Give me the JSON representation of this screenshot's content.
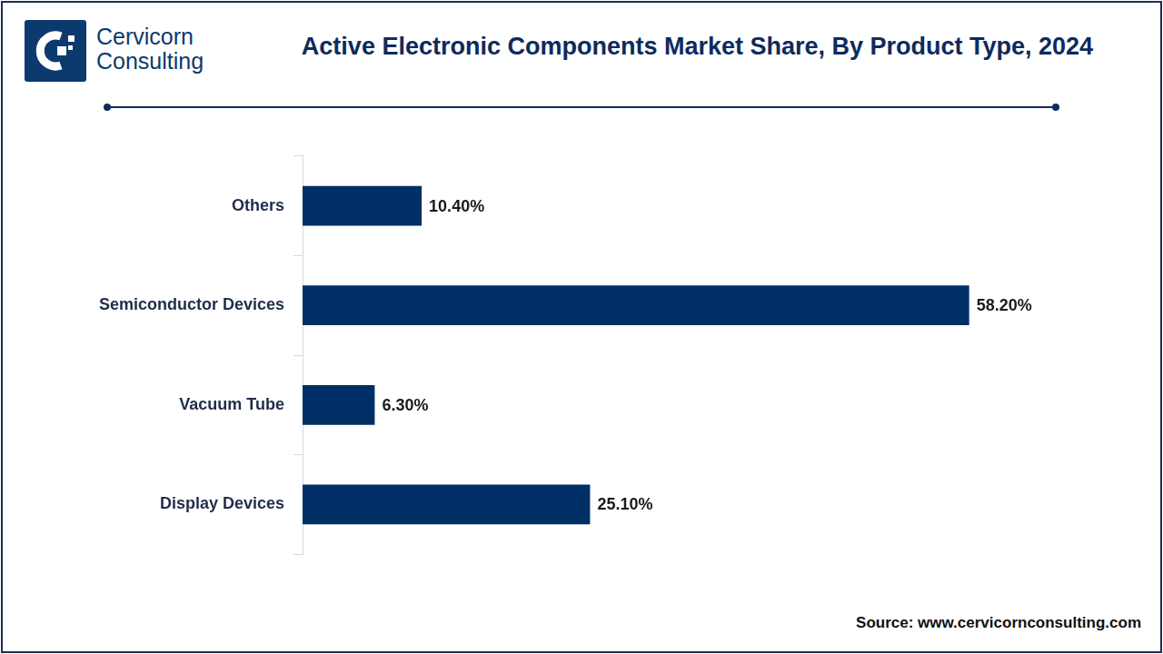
{
  "logo": {
    "lines": [
      "Cervicorn",
      "Consulting"
    ]
  },
  "chart_data": {
    "type": "bar",
    "orientation": "horizontal",
    "title": "Active Electronic Components Market Share, By Product Type, 2024",
    "categories": [
      "Others",
      "Semiconductor Devices",
      "Vacuum Tube",
      "Display Devices"
    ],
    "values": [
      10.4,
      58.2,
      6.3,
      25.1
    ],
    "value_labels": [
      "10.40%",
      "58.20%",
      "6.30%",
      "25.10%"
    ],
    "color": "#002f66",
    "xlim": [
      0,
      66
    ],
    "grid": false,
    "data_labels": true,
    "tick_labels": "y"
  },
  "footer": {
    "source": "Source: www.cervicornconsulting.com"
  }
}
